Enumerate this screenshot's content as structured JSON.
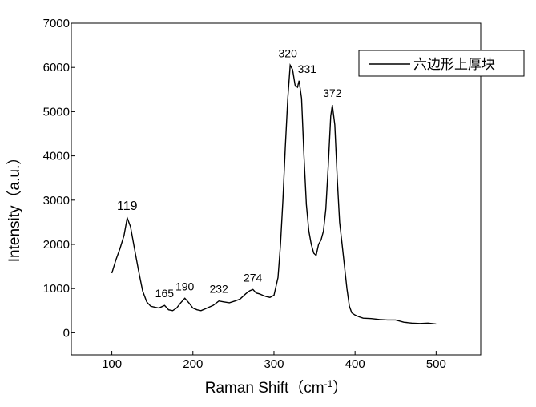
{
  "chart_data": {
    "type": "line",
    "title": "",
    "xlabel": "Raman Shift（cm",
    "xlabel_superscript": "-1",
    "xlabel_suffix": "）",
    "ylabel": "Intensity（a.u.）",
    "xlim": [
      50,
      555
    ],
    "ylim": [
      -500,
      7000
    ],
    "x_ticks": [
      100,
      200,
      300,
      400,
      500
    ],
    "y_ticks": [
      0,
      1000,
      2000,
      3000,
      4000,
      5000,
      6000,
      7000
    ],
    "grid": false,
    "legend_position": "top-right",
    "series": [
      {
        "name": "六边形上厚块",
        "color": "#000000",
        "points": [
          [
            100,
            1350
          ],
          [
            105,
            1650
          ],
          [
            110,
            1900
          ],
          [
            115,
            2200
          ],
          [
            119,
            2600
          ],
          [
            123,
            2400
          ],
          [
            128,
            1900
          ],
          [
            133,
            1400
          ],
          [
            138,
            950
          ],
          [
            143,
            700
          ],
          [
            148,
            600
          ],
          [
            153,
            580
          ],
          [
            158,
            560
          ],
          [
            165,
            620
          ],
          [
            170,
            520
          ],
          [
            175,
            500
          ],
          [
            180,
            560
          ],
          [
            185,
            680
          ],
          [
            190,
            780
          ],
          [
            195,
            680
          ],
          [
            200,
            560
          ],
          [
            205,
            520
          ],
          [
            210,
            500
          ],
          [
            215,
            540
          ],
          [
            220,
            580
          ],
          [
            225,
            620
          ],
          [
            232,
            720
          ],
          [
            238,
            700
          ],
          [
            245,
            680
          ],
          [
            252,
            720
          ],
          [
            258,
            760
          ],
          [
            265,
            880
          ],
          [
            270,
            950
          ],
          [
            274,
            980
          ],
          [
            278,
            900
          ],
          [
            282,
            880
          ],
          [
            286,
            850
          ],
          [
            290,
            820
          ],
          [
            295,
            800
          ],
          [
            300,
            850
          ],
          [
            305,
            1250
          ],
          [
            308,
            2000
          ],
          [
            311,
            3000
          ],
          [
            314,
            4200
          ],
          [
            317,
            5300
          ],
          [
            320,
            6050
          ],
          [
            323,
            5950
          ],
          [
            326,
            5600
          ],
          [
            329,
            5550
          ],
          [
            331,
            5700
          ],
          [
            334,
            5300
          ],
          [
            337,
            4000
          ],
          [
            340,
            2900
          ],
          [
            343,
            2300
          ],
          [
            346,
            2000
          ],
          [
            349,
            1800
          ],
          [
            352,
            1750
          ],
          [
            355,
            2000
          ],
          [
            358,
            2100
          ],
          [
            361,
            2300
          ],
          [
            364,
            2800
          ],
          [
            367,
            3800
          ],
          [
            370,
            4900
          ],
          [
            372,
            5150
          ],
          [
            375,
            4700
          ],
          [
            378,
            3500
          ],
          [
            381,
            2500
          ],
          [
            384,
            2000
          ],
          [
            387,
            1500
          ],
          [
            390,
            1000
          ],
          [
            393,
            600
          ],
          [
            396,
            450
          ],
          [
            400,
            400
          ],
          [
            405,
            360
          ],
          [
            410,
            330
          ],
          [
            420,
            320
          ],
          [
            430,
            300
          ],
          [
            440,
            290
          ],
          [
            450,
            290
          ],
          [
            460,
            240
          ],
          [
            470,
            220
          ],
          [
            480,
            210
          ],
          [
            490,
            220
          ],
          [
            500,
            200
          ]
        ]
      }
    ],
    "annotations": [
      {
        "text": "119",
        "x": 119,
        "y": 2600,
        "size": "large"
      },
      {
        "text": "165",
        "x": 165,
        "y": 620,
        "size": "small"
      },
      {
        "text": "190",
        "x": 190,
        "y": 780,
        "size": "small"
      },
      {
        "text": "232",
        "x": 232,
        "y": 720,
        "size": "small"
      },
      {
        "text": "274",
        "x": 274,
        "y": 980,
        "size": "small"
      },
      {
        "text": "320",
        "x": 320,
        "y": 6050,
        "size": "small"
      },
      {
        "text": "331",
        "x": 331,
        "y": 5700,
        "size": "small"
      },
      {
        "text": "372",
        "x": 372,
        "y": 5150,
        "size": "small"
      }
    ]
  }
}
